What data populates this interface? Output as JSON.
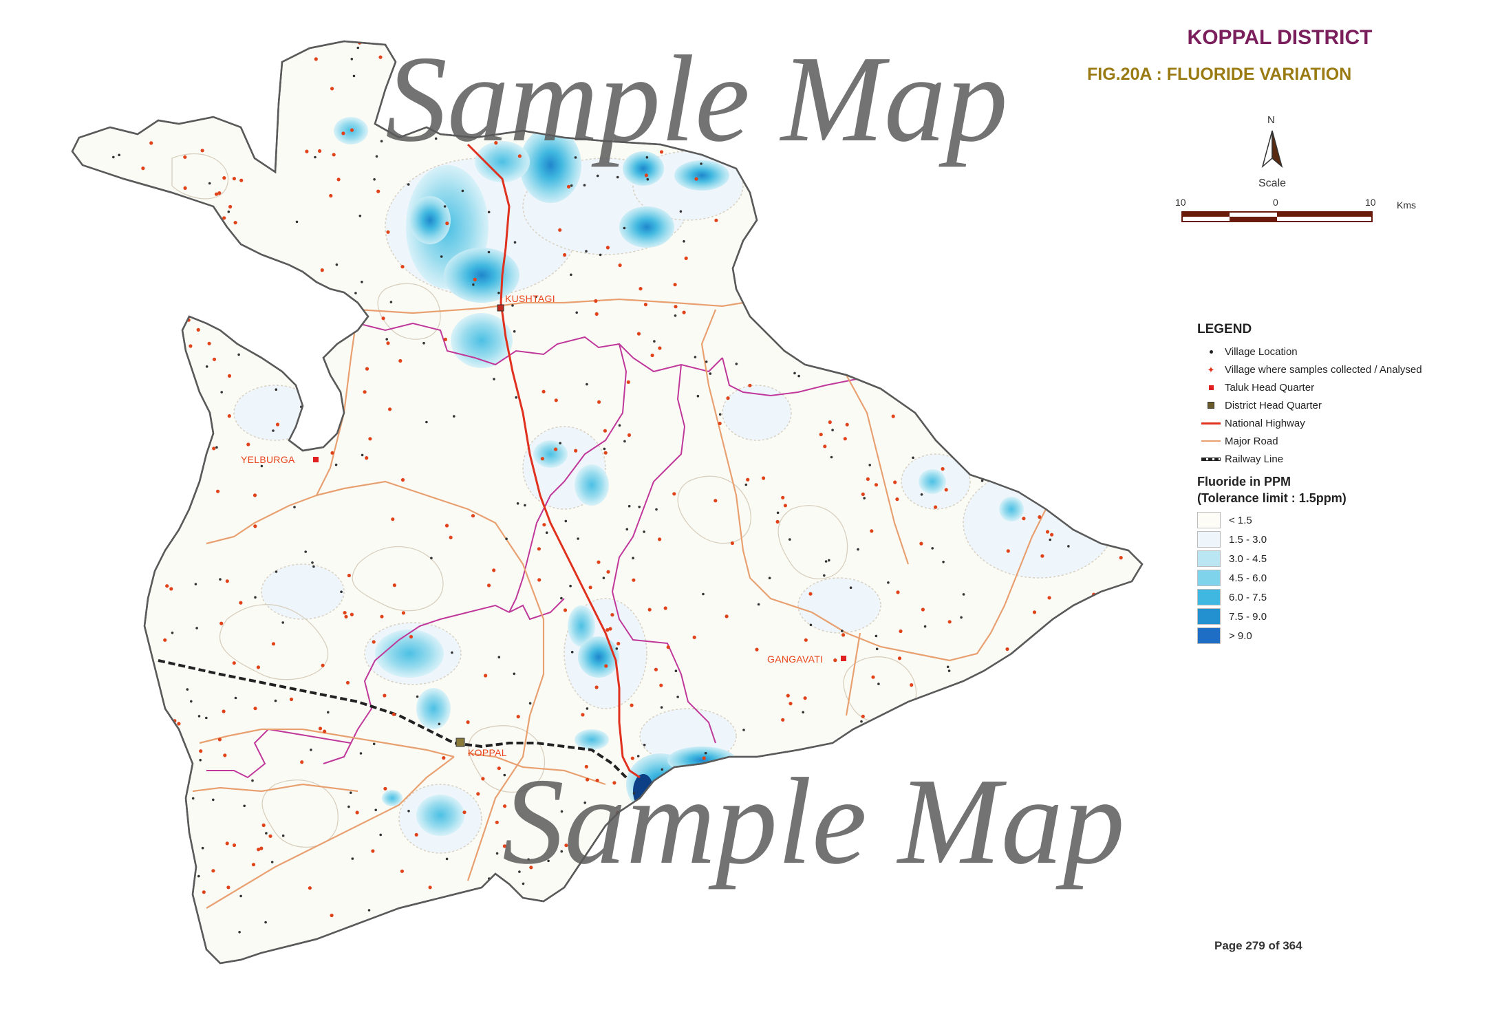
{
  "title": "KOPPAL DISTRICT",
  "subtitle": "FIG.20A  :  FLUORIDE VARIATION",
  "north_label": "N",
  "scale": {
    "label": "Scale",
    "left": "10",
    "center": "0",
    "right": "10",
    "unit": "Kms"
  },
  "legend": {
    "title": "LEGEND",
    "items": [
      {
        "label": "Village Location",
        "icon": "village-dot-icon"
      },
      {
        "label": "Village where samples collected / Analysed",
        "icon": "sample-star-icon"
      },
      {
        "label": "Taluk Head Quarter",
        "icon": "taluk-hq-icon"
      },
      {
        "label": "District Head Quarter",
        "icon": "district-hq-icon"
      },
      {
        "label": "National Highway",
        "icon": "national-highway-line"
      },
      {
        "label": "Major Road",
        "icon": "major-road-line"
      },
      {
        "label": "Railway Line",
        "icon": "railway-line"
      }
    ],
    "fluoride_title_1": "Fluoride in PPM",
    "fluoride_title_2": "(Tolerance limit : 1.5ppm)",
    "fluoride_classes": [
      {
        "label": "< 1.5",
        "color": "#fdfcf6"
      },
      {
        "label": "1.5 - 3.0",
        "color": "#eef5fb"
      },
      {
        "label": "3.0 - 4.5",
        "color": "#b9e6f2"
      },
      {
        "label": "4.5 - 6.0",
        "color": "#7fd3ea"
      },
      {
        "label": "6.0 - 7.5",
        "color": "#3fb7e0"
      },
      {
        "label": "7.5 - 9.0",
        "color": "#2391d0"
      },
      {
        "label": "> 9.0",
        "color": "#1d6ec4"
      }
    ]
  },
  "towns": {
    "kushtagi": "KUSHTAGI",
    "yelburga": "YELBURGA",
    "gangavati": "GANGAVATI",
    "koppal": "KOPPAL"
  },
  "page_number": "Page 279 of 364",
  "watermark": "Sample Map",
  "colors": {
    "boundary": "#5a5a5a",
    "taluk_boundary": "#c0379a",
    "national_highway": "#e0301e",
    "major_road": "#e8a070",
    "contour": "#d8d0c0"
  }
}
